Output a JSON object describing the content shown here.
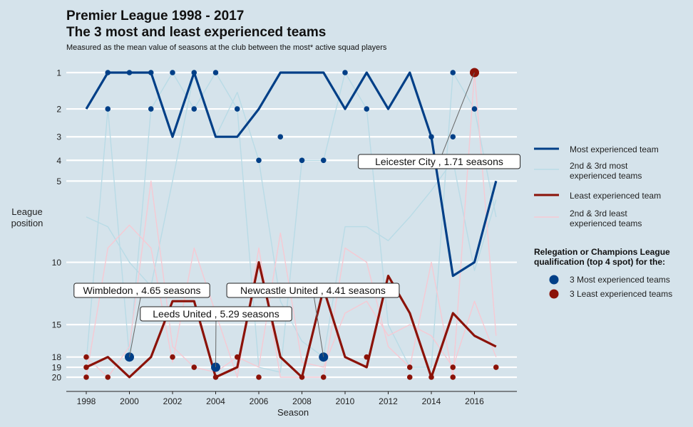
{
  "header": {
    "title_line1": "Premier League 1998 - 2017",
    "title_line2": "The 3 most and least experienced teams",
    "subtitle": "Measured as the mean value of seasons at the club between the most* active squad players"
  },
  "chart_data": {
    "type": "line",
    "xlabel": "Season",
    "ylabel_lines": [
      "League",
      "position"
    ],
    "x": [
      1998,
      1999,
      2000,
      2001,
      2002,
      2003,
      2004,
      2005,
      2006,
      2007,
      2008,
      2009,
      2010,
      2011,
      2012,
      2013,
      2014,
      2015,
      2016,
      2017
    ],
    "x_ticks": [
      1998,
      2000,
      2002,
      2004,
      2006,
      2008,
      2010,
      2012,
      2014,
      2016
    ],
    "y_ticks": [
      1,
      2,
      3,
      4,
      5,
      10,
      15,
      18,
      19,
      20
    ],
    "y_scale": "sqrt-reversed",
    "xlim": [
      1997.5,
      2017.9
    ],
    "ylim": [
      1,
      20
    ],
    "grid": "horizontal-only",
    "legend_position": "right",
    "colors": {
      "most": "#003f87",
      "most_light": "#b9dbe6",
      "least": "#8b1208",
      "least_light": "#f6c9d3",
      "background": "#d5e3eb"
    },
    "series": [
      {
        "key": "most",
        "values": [
          2,
          1,
          1,
          1,
          3,
          1,
          3,
          3,
          2,
          1,
          1,
          1,
          2,
          1,
          2,
          1,
          3,
          11,
          10,
          5
        ]
      },
      {
        "key": "least",
        "values": [
          19,
          18,
          20,
          18,
          13,
          13,
          20,
          19,
          10,
          18,
          20,
          12,
          18,
          19,
          11,
          14,
          20,
          14,
          16,
          17
        ]
      },
      {
        "key": "most_light",
        "values": [
          7,
          7.6,
          10,
          11.8,
          5,
          1,
          3,
          1.5,
          4,
          13,
          16.5,
          18,
          7.6,
          7.6,
          8.5,
          7,
          5.5,
          4,
          10.6,
          6
        ]
      },
      {
        "key": "most_light",
        "values": [
          18.5,
          2,
          18,
          2,
          1,
          2,
          1,
          2,
          19,
          19.5,
          4,
          4,
          1,
          2,
          15,
          19,
          19,
          1,
          2,
          7
        ]
      },
      {
        "key": "least_light",
        "values": [
          20,
          9,
          7.5,
          9,
          18.5,
          9,
          14,
          20,
          9,
          20,
          20,
          20,
          9,
          10,
          17,
          19,
          10,
          20,
          1,
          16
        ]
      },
      {
        "key": "least_light",
        "values": [
          18,
          20,
          17,
          5,
          17,
          19,
          19.5,
          18,
          19,
          8,
          18.5,
          19,
          14,
          13,
          16,
          15,
          16,
          19,
          13,
          18
        ]
      }
    ],
    "qualification_dots": {
      "most": [
        [
          1999,
          1
        ],
        [
          1999,
          2
        ],
        [
          2000,
          1
        ],
        [
          2000,
          18
        ],
        [
          2001,
          1
        ],
        [
          2001,
          2
        ],
        [
          2002,
          1
        ],
        [
          2003,
          1
        ],
        [
          2003,
          2
        ],
        [
          2004,
          1
        ],
        [
          2004,
          19
        ],
        [
          2005,
          2
        ],
        [
          2006,
          4
        ],
        [
          2007,
          3
        ],
        [
          2008,
          4
        ],
        [
          2009,
          4
        ],
        [
          2009,
          18
        ],
        [
          2010,
          1
        ],
        [
          2011,
          2
        ],
        [
          2014,
          3
        ],
        [
          2015,
          1
        ],
        [
          2015,
          3
        ],
        [
          2016,
          2
        ]
      ],
      "least": [
        [
          1998,
          18
        ],
        [
          1998,
          19
        ],
        [
          1998,
          20
        ],
        [
          1999,
          20
        ],
        [
          2002,
          18
        ],
        [
          2003,
          19
        ],
        [
          2004,
          20
        ],
        [
          2005,
          18
        ],
        [
          2006,
          20
        ],
        [
          2008,
          20
        ],
        [
          2009,
          20
        ],
        [
          2011,
          18
        ],
        [
          2013,
          19
        ],
        [
          2013,
          20
        ],
        [
          2014,
          20
        ],
        [
          2015,
          19
        ],
        [
          2015,
          20
        ],
        [
          2016,
          1
        ],
        [
          2017,
          19
        ]
      ],
      "highlighted": [
        {
          "x": 2000,
          "y": 18,
          "group": "most"
        },
        {
          "x": 2004,
          "y": 19,
          "group": "most"
        },
        {
          "x": 2009,
          "y": 18,
          "group": "most"
        },
        {
          "x": 2016,
          "y": 1,
          "group": "least"
        }
      ]
    },
    "annotations": [
      {
        "text": "Wimbledon , 4.65 seasons",
        "x": 2000,
        "y": 18
      },
      {
        "text": "Leeds United , 5.29 seasons",
        "x": 2004,
        "y": 19
      },
      {
        "text": "Newcastle United , 4.41 seasons",
        "x": 2009,
        "y": 18
      },
      {
        "text": "Leicester City , 1.71 seasons",
        "x": 2016,
        "y": 1
      }
    ],
    "legend": {
      "items": [
        {
          "key": "most",
          "label_lines": [
            "Most experienced team"
          ]
        },
        {
          "key": "most_light",
          "label_lines": [
            "2nd & 3rd most",
            "experienced teams"
          ]
        },
        {
          "key": "least",
          "label_lines": [
            "Least experienced team"
          ]
        },
        {
          "key": "least_light",
          "label_lines": [
            "2nd & 3rd least",
            "experienced teams"
          ]
        }
      ],
      "dot_title_lines": [
        "Relegation or Champions League",
        "qualification (top 4 spot) for the:"
      ],
      "dot_items": [
        {
          "key": "most",
          "label": "3 Most experienced teams"
        },
        {
          "key": "least",
          "label": "3 Least experienced teams"
        }
      ]
    }
  }
}
